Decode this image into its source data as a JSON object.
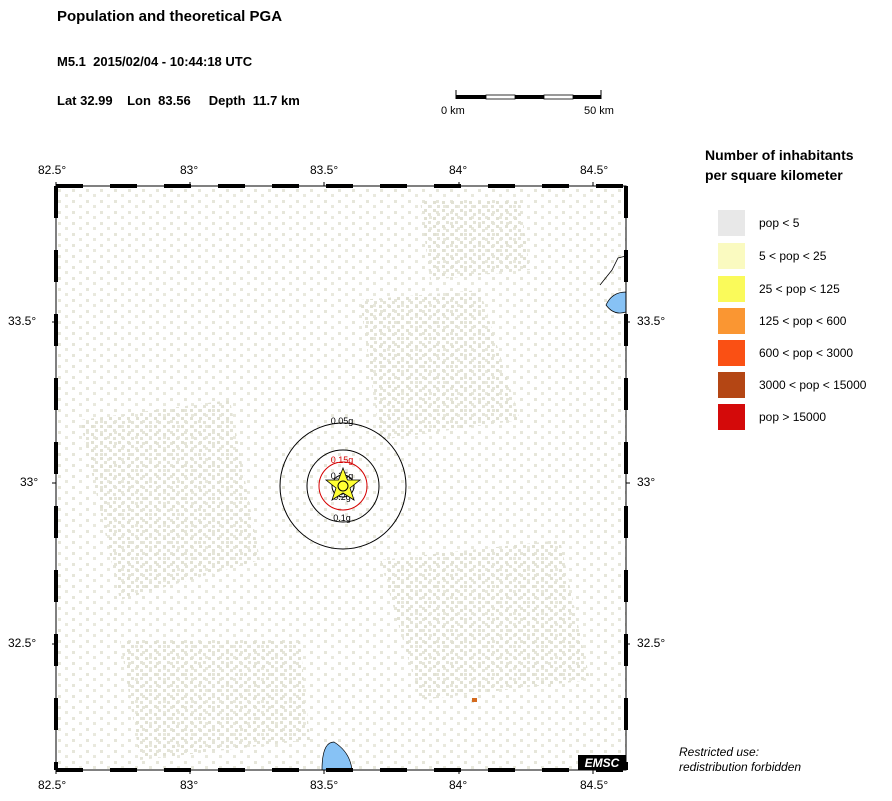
{
  "header": {
    "title": "Population and theoretical PGA",
    "event": "M5.1  2015/02/04 - 10:44:18 UTC",
    "location": "Lat 32.99    Lon  83.56     Depth  11.7 km"
  },
  "scale_bar": {
    "left_label": "0 km",
    "right_label": "50 km"
  },
  "axes": {
    "x_ticks": [
      "82.5°",
      "83°",
      "83.5°",
      "84°",
      "84.5°"
    ],
    "y_ticks": [
      "33.5°",
      "33°",
      "32.5°"
    ],
    "lon_range": [
      82.5,
      84.6
    ],
    "lat_range": [
      32.1,
      33.9
    ]
  },
  "pga_contours": [
    {
      "label": "0.05g",
      "color": "#000000"
    },
    {
      "label": "0.1g",
      "color": "#000000"
    },
    {
      "label": "0.15g",
      "color": "#d40000"
    },
    {
      "label": "0.2g",
      "color": "#000000"
    },
    {
      "label": "0.25g",
      "color": "#000000"
    }
  ],
  "epicenter": {
    "lat": 32.99,
    "lon": 83.56,
    "marker": "star-icon"
  },
  "legend": {
    "title_line1": "Number of inhabitants",
    "title_line2": "per square kilometer",
    "items": [
      {
        "label": "pop < 5",
        "color": "#e8e8e8"
      },
      {
        "label": "5 < pop < 25",
        "color": "#fafac0"
      },
      {
        "label": "25 < pop < 125",
        "color": "#fafa5a"
      },
      {
        "label": "125 < pop < 600",
        "color": "#fa9632"
      },
      {
        "label": "600 < pop < 3000",
        "color": "#fa5014"
      },
      {
        "label": "3000 < pop < 15000",
        "color": "#b44614"
      },
      {
        "label": "pop > 15000",
        "color": "#d40a0a"
      }
    ]
  },
  "logo": "EMSC",
  "restricted": {
    "line1": "Restricted use:",
    "line2": "redistribution forbidden"
  },
  "colors": {
    "water": "#87c2f5",
    "land_sparse": "#e8e8dc"
  }
}
